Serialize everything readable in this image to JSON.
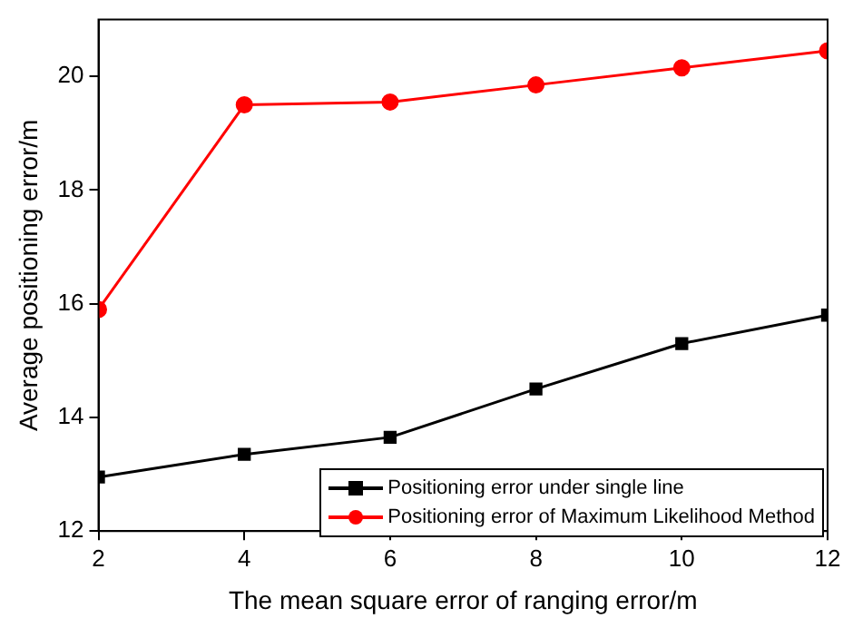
{
  "chart_data": {
    "type": "line",
    "xlabel": "The mean square error of ranging error/m",
    "ylabel": "Average positioning error/m",
    "x": [
      2,
      4,
      6,
      8,
      10,
      12
    ],
    "series": [
      {
        "name": "Positioning error under single line",
        "color": "#000000",
        "marker": "square",
        "values": [
          12.95,
          13.35,
          13.65,
          14.5,
          15.3,
          15.8
        ]
      },
      {
        "name": "Positioning error of Maximum Likelihood Method",
        "color": "#ff0000",
        "marker": "circle",
        "values": [
          15.9,
          19.5,
          19.55,
          19.85,
          20.15,
          20.45
        ]
      }
    ],
    "xlim": [
      2,
      12
    ],
    "xticks": [
      2,
      4,
      6,
      8,
      10,
      12
    ],
    "ylim": [
      12,
      21
    ],
    "yticks": [
      12,
      14,
      16,
      18,
      20
    ],
    "grid": false,
    "legend": "bottom right",
    "line_style": "solid"
  }
}
